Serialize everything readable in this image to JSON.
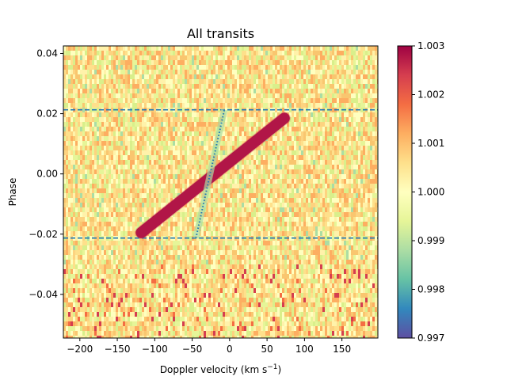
{
  "chart_data": {
    "type": "heatmap",
    "title": "All transits",
    "xlabel_main": "Doppler velocity (km s",
    "xlabel_sup": "−1",
    "xlabel_close": ")",
    "ylabel": "Phase",
    "xlim": [
      -222,
      198
    ],
    "ylim": [
      -0.0545,
      0.0425
    ],
    "xticks": [
      -200,
      -150,
      -100,
      -50,
      0,
      50,
      100,
      150
    ],
    "xtick_labels": [
      "−200",
      "−150",
      "−100",
      "−50",
      "0",
      "50",
      "100",
      "150"
    ],
    "yticks": [
      -0.04,
      -0.02,
      0.0,
      0.02,
      0.04
    ],
    "ytick_labels": [
      "−0.04",
      "−0.02",
      "0.00",
      "0.02",
      "0.04"
    ],
    "colormap": "Spectral_r",
    "colorbar": {
      "range": [
        0.997,
        1.003
      ],
      "ticks": [
        0.997,
        0.998,
        0.999,
        1.0,
        1.001,
        1.002,
        1.003
      ],
      "tick_labels": [
        "0.997",
        "0.998",
        "0.999",
        "1.000",
        "1.001",
        "1.002",
        "1.003"
      ]
    },
    "transit_window": {
      "phase_start": -0.0213,
      "phase_end": 0.0213,
      "line_style": "dashed",
      "color": "#1f77b4"
    },
    "planet_trace": {
      "description": "bright diagonal feature",
      "velocity_at_start": -118,
      "velocity_at_end": 73,
      "phase_at_start": -0.0195,
      "phase_at_end": 0.0185,
      "value": 1.003
    },
    "stellar_trace": {
      "line_style": "dotted",
      "color": "#1f77b4",
      "velocity_at_start": -45,
      "velocity_at_end": -7,
      "phase_at_start": -0.0213,
      "phase_at_end": 0.0213
    },
    "grid": false,
    "legend": "none"
  }
}
